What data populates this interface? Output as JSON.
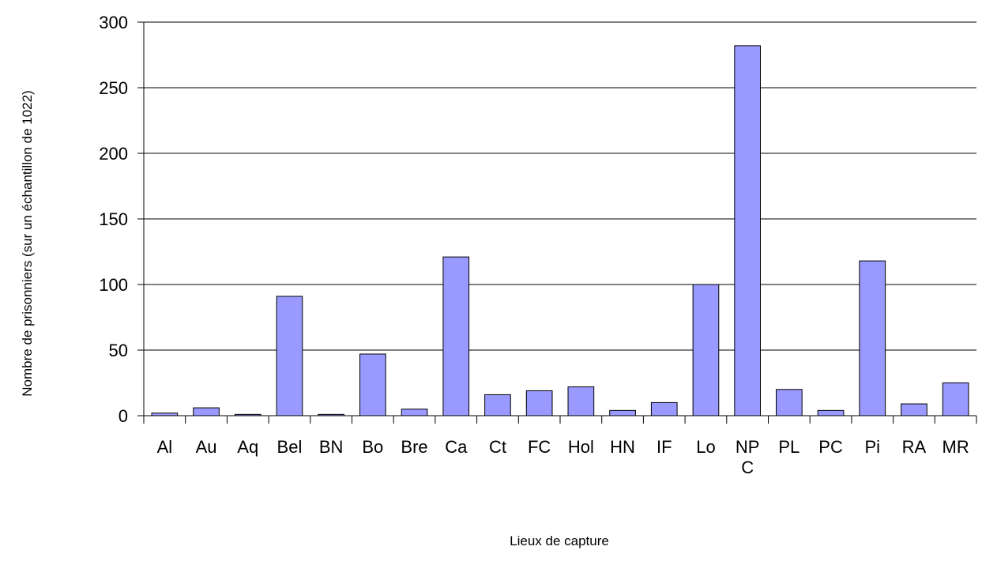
{
  "chart_data": {
    "type": "bar",
    "title": "",
    "xlabel": "Lieux de capture",
    "ylabel": "Nombre de prisonniers (sur un échantillon de 1022)",
    "categories": [
      "Al",
      "Au",
      "Aq",
      "Bel",
      "BN",
      "Bo",
      "Bre",
      "Ca",
      "Ct",
      "FC",
      "Hol",
      "HN",
      "IF",
      "Lo",
      "NP C",
      "PL",
      "PC",
      "Pi",
      "RA",
      "MR"
    ],
    "values": [
      2,
      6,
      1,
      91,
      1,
      47,
      5,
      121,
      16,
      19,
      22,
      4,
      10,
      100,
      282,
      20,
      4,
      118,
      9,
      25
    ],
    "ylim": [
      0,
      300
    ],
    "yticks": [
      0,
      50,
      100,
      150,
      200,
      250,
      300
    ],
    "grid": true,
    "legend": "none",
    "bar_color": "#9999ff",
    "bar_edge_color": "#000000"
  }
}
